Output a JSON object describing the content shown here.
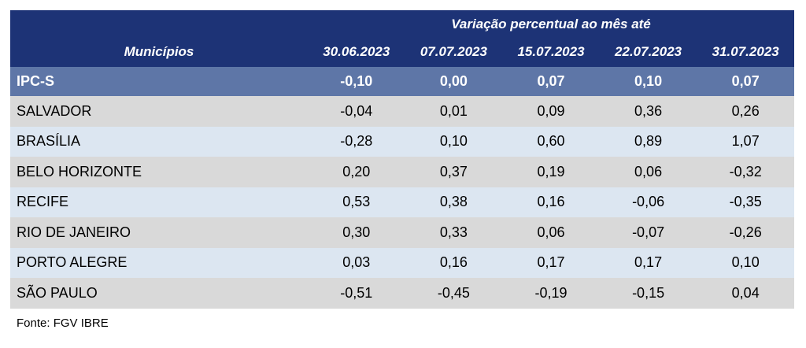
{
  "table": {
    "header_super": "Variação percentual ao mês até",
    "header_municipios": "Municípios",
    "dates": [
      "30.06.2023",
      "07.07.2023",
      "15.07.2023",
      "22.07.2023",
      "31.07.2023"
    ],
    "ipc": {
      "name": "IPC-S",
      "values": [
        "-0,10",
        "0,00",
        "0,07",
        "0,10",
        "0,07"
      ]
    },
    "rows": [
      {
        "name": "SALVADOR",
        "values": [
          "-0,04",
          "0,01",
          "0,09",
          "0,36",
          "0,26"
        ]
      },
      {
        "name": "BRASÍLIA",
        "values": [
          "-0,28",
          "0,10",
          "0,60",
          "0,89",
          "1,07"
        ]
      },
      {
        "name": "BELO HORIZONTE",
        "values": [
          "0,20",
          "0,37",
          "0,19",
          "0,06",
          "-0,32"
        ]
      },
      {
        "name": "RECIFE",
        "values": [
          "0,53",
          "0,38",
          "0,16",
          "-0,06",
          "-0,35"
        ]
      },
      {
        "name": "RIO DE JANEIRO",
        "values": [
          "0,30",
          "0,33",
          "0,06",
          "-0,07",
          "-0,26"
        ]
      },
      {
        "name": "PORTO ALEGRE",
        "values": [
          "0,03",
          "0,16",
          "0,17",
          "0,17",
          "0,10"
        ]
      },
      {
        "name": "SÃO PAULO",
        "values": [
          "-0,51",
          "-0,45",
          "-0,19",
          "-0,15",
          "0,04"
        ]
      }
    ]
  },
  "source": "Fonte: FGV IBRE",
  "colors": {
    "header_bg": "#1d3376",
    "ipc_bg": "#5e76a7",
    "row_gray": "#d9d9d9",
    "row_blue": "#dce6f1"
  }
}
